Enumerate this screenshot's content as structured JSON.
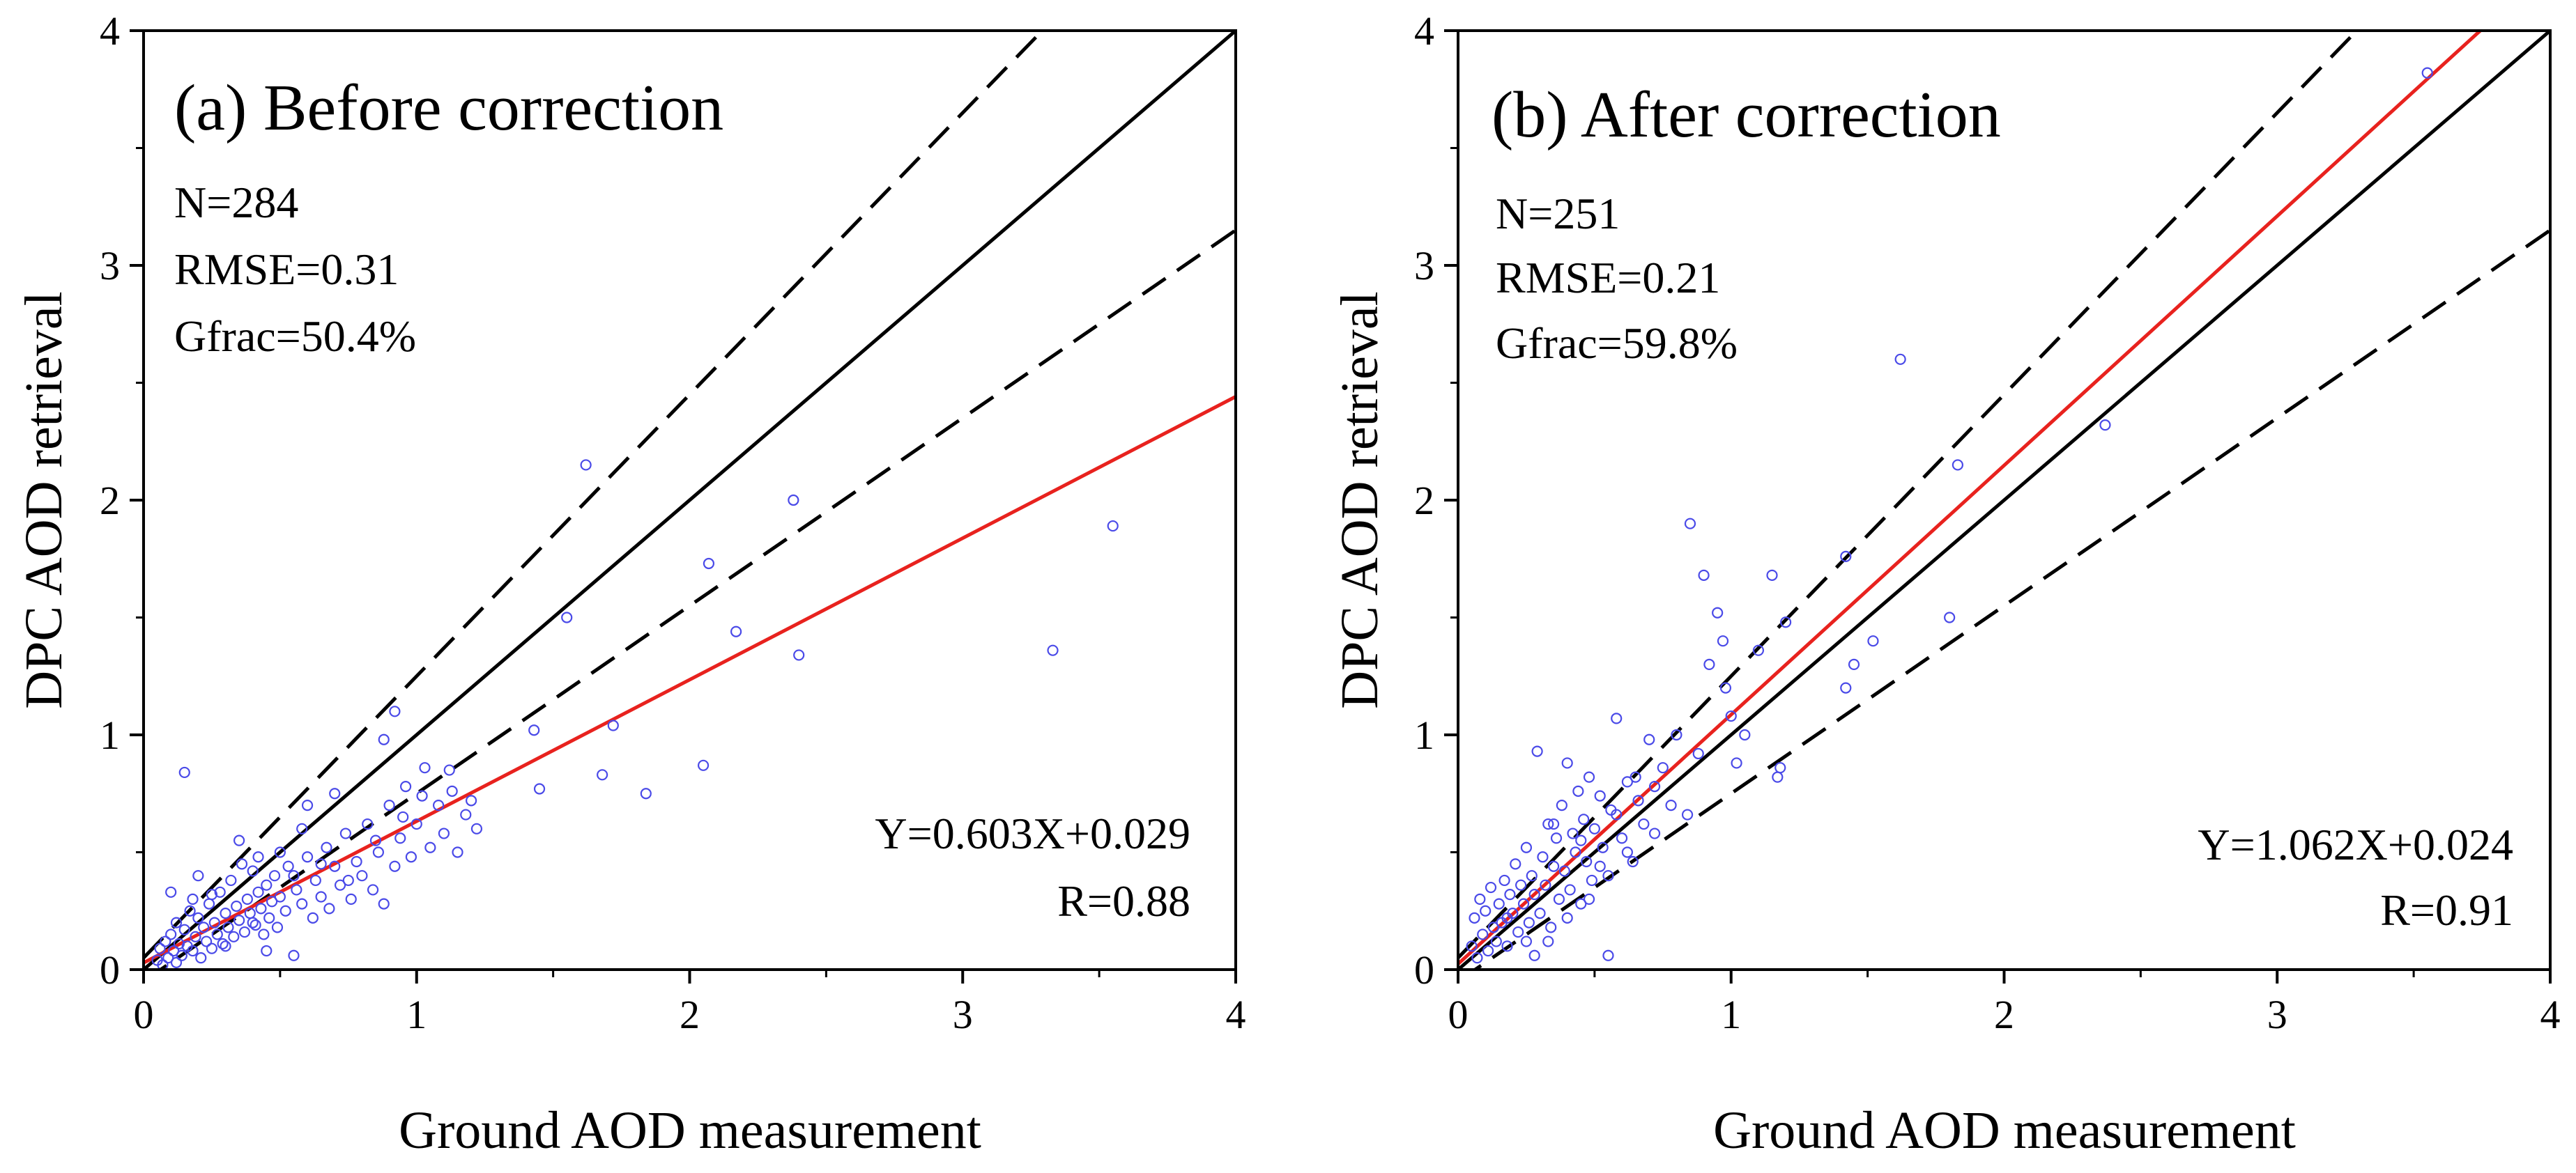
{
  "chart_data": [
    {
      "type": "scatter",
      "title": "(a) Before correction",
      "xlabel": "Ground AOD measurement",
      "ylabel": "DPC AOD retrieval",
      "xlim": [
        0,
        4
      ],
      "ylim": [
        0,
        4
      ],
      "xticks": [
        "0",
        "1",
        "2",
        "3",
        "4"
      ],
      "yticks": [
        "0",
        "1",
        "2",
        "3",
        "4"
      ],
      "stats": {
        "n": "N=284",
        "rmse": "RMSE=0.31",
        "gfrac": "Gfrac=50.4%"
      },
      "fit": {
        "equation": "Y=0.603X+0.029",
        "r": "R=0.88",
        "slope": 0.603,
        "intercept": 0.029
      },
      "reference_lines": {
        "one_to_one": true,
        "error_envelope": "dashed"
      },
      "colors": {
        "points": "#4a4ae8",
        "fit": "#e8221e",
        "one_to_one": "#000000"
      },
      "points": [
        [
          0.05,
          0.04
        ],
        [
          0.06,
          0.09
        ],
        [
          0.07,
          0.02
        ],
        [
          0.08,
          0.12
        ],
        [
          0.09,
          0.05
        ],
        [
          0.1,
          0.15
        ],
        [
          0.11,
          0.08
        ],
        [
          0.12,
          0.03
        ],
        [
          0.12,
          0.2
        ],
        [
          0.13,
          0.11
        ],
        [
          0.14,
          0.06
        ],
        [
          0.15,
          0.17
        ],
        [
          0.16,
          0.1
        ],
        [
          0.17,
          0.25
        ],
        [
          0.18,
          0.08
        ],
        [
          0.19,
          0.14
        ],
        [
          0.2,
          0.22
        ],
        [
          0.21,
          0.05
        ],
        [
          0.22,
          0.18
        ],
        [
          0.23,
          0.12
        ],
        [
          0.24,
          0.28
        ],
        [
          0.25,
          0.09
        ],
        [
          0.26,
          0.2
        ],
        [
          0.27,
          0.15
        ],
        [
          0.28,
          0.33
        ],
        [
          0.29,
          0.11
        ],
        [
          0.3,
          0.24
        ],
        [
          0.31,
          0.18
        ],
        [
          0.32,
          0.38
        ],
        [
          0.33,
          0.14
        ],
        [
          0.34,
          0.27
        ],
        [
          0.35,
          0.21
        ],
        [
          0.36,
          0.45
        ],
        [
          0.37,
          0.16
        ],
        [
          0.38,
          0.3
        ],
        [
          0.39,
          0.24
        ],
        [
          0.4,
          0.42
        ],
        [
          0.41,
          0.19
        ],
        [
          0.42,
          0.33
        ],
        [
          0.43,
          0.26
        ],
        [
          0.44,
          0.15
        ],
        [
          0.45,
          0.36
        ],
        [
          0.46,
          0.22
        ],
        [
          0.47,
          0.29
        ],
        [
          0.48,
          0.4
        ],
        [
          0.49,
          0.18
        ],
        [
          0.5,
          0.31
        ],
        [
          0.52,
          0.25
        ],
        [
          0.53,
          0.44
        ],
        [
          0.55,
          0.06
        ],
        [
          0.56,
          0.34
        ],
        [
          0.58,
          0.28
        ],
        [
          0.6,
          0.48
        ],
        [
          0.62,
          0.22
        ],
        [
          0.63,
          0.38
        ],
        [
          0.65,
          0.31
        ],
        [
          0.67,
          0.52
        ],
        [
          0.68,
          0.26
        ],
        [
          0.7,
          0.44
        ],
        [
          0.72,
          0.36
        ],
        [
          0.74,
          0.58
        ],
        [
          0.76,
          0.3
        ],
        [
          0.78,
          0.46
        ],
        [
          0.8,
          0.4
        ],
        [
          0.82,
          0.62
        ],
        [
          0.84,
          0.34
        ],
        [
          0.86,
          0.5
        ],
        [
          0.88,
          0.28
        ],
        [
          0.9,
          0.7
        ],
        [
          0.92,
          0.44
        ],
        [
          0.94,
          0.56
        ],
        [
          0.96,
          0.78
        ],
        [
          0.98,
          0.48
        ],
        [
          1.0,
          0.62
        ],
        [
          1.03,
          0.86
        ],
        [
          1.05,
          0.52
        ],
        [
          1.08,
          0.7
        ],
        [
          1.1,
          0.58
        ],
        [
          1.13,
          0.76
        ],
        [
          1.15,
          0.5
        ],
        [
          1.18,
          0.66
        ],
        [
          1.2,
          0.72
        ],
        [
          1.22,
          0.6
        ],
        [
          0.15,
          0.84
        ],
        [
          0.92,
          1.1
        ],
        [
          0.88,
          0.98
        ],
        [
          0.7,
          0.75
        ],
        [
          0.6,
          0.7
        ],
        [
          0.35,
          0.55
        ],
        [
          0.2,
          0.4
        ],
        [
          0.1,
          0.33
        ],
        [
          0.18,
          0.3
        ],
        [
          1.43,
          1.02
        ],
        [
          1.45,
          0.77
        ],
        [
          1.55,
          1.5
        ],
        [
          1.62,
          2.15
        ],
        [
          1.68,
          0.83
        ],
        [
          1.72,
          1.04
        ],
        [
          1.84,
          0.75
        ],
        [
          2.05,
          0.87
        ],
        [
          2.07,
          1.73
        ],
        [
          2.17,
          1.44
        ],
        [
          2.38,
          2.0
        ],
        [
          2.4,
          1.34
        ],
        [
          3.33,
          1.36
        ],
        [
          3.55,
          1.89
        ],
        [
          0.3,
          0.1
        ],
        [
          0.4,
          0.2
        ],
        [
          0.25,
          0.32
        ],
        [
          0.55,
          0.4
        ],
        [
          0.45,
          0.08
        ],
        [
          0.65,
          0.45
        ],
        [
          0.75,
          0.38
        ],
        [
          0.85,
          0.55
        ],
        [
          0.95,
          0.65
        ],
        [
          1.02,
          0.74
        ],
        [
          1.12,
          0.85
        ],
        [
          0.58,
          0.6
        ],
        [
          0.5,
          0.5
        ],
        [
          0.42,
          0.48
        ]
      ]
    },
    {
      "type": "scatter",
      "title": "(b) After correction",
      "xlabel": "Ground AOD measurement",
      "ylabel": "DPC AOD retrieval",
      "xlim": [
        0,
        4
      ],
      "ylim": [
        0,
        4
      ],
      "xticks": [
        "0",
        "1",
        "2",
        "3",
        "4"
      ],
      "yticks": [
        "0",
        "1",
        "2",
        "3",
        "4"
      ],
      "stats": {
        "n": "N=251",
        "rmse": "RMSE=0.21",
        "gfrac": "Gfrac=59.8%"
      },
      "fit": {
        "equation": "Y=1.062X+0.024",
        "r": "R=0.91",
        "slope": 1.062,
        "intercept": 0.024
      },
      "reference_lines": {
        "one_to_one": true,
        "error_envelope": "dashed"
      },
      "colors": {
        "points": "#4a4ae8",
        "fit": "#e8221e",
        "one_to_one": "#000000"
      },
      "points": [
        [
          0.05,
          0.1
        ],
        [
          0.06,
          0.22
        ],
        [
          0.07,
          0.05
        ],
        [
          0.08,
          0.3
        ],
        [
          0.09,
          0.15
        ],
        [
          0.1,
          0.25
        ],
        [
          0.11,
          0.08
        ],
        [
          0.12,
          0.35
        ],
        [
          0.13,
          0.18
        ],
        [
          0.14,
          0.12
        ],
        [
          0.15,
          0.28
        ],
        [
          0.16,
          0.2
        ],
        [
          0.17,
          0.38
        ],
        [
          0.18,
          0.1
        ],
        [
          0.19,
          0.32
        ],
        [
          0.2,
          0.24
        ],
        [
          0.21,
          0.45
        ],
        [
          0.22,
          0.16
        ],
        [
          0.23,
          0.36
        ],
        [
          0.24,
          0.28
        ],
        [
          0.25,
          0.52
        ],
        [
          0.26,
          0.2
        ],
        [
          0.27,
          0.4
        ],
        [
          0.28,
          0.32
        ],
        [
          0.29,
          0.93
        ],
        [
          0.3,
          0.24
        ],
        [
          0.31,
          0.48
        ],
        [
          0.32,
          0.36
        ],
        [
          0.33,
          0.62
        ],
        [
          0.34,
          0.18
        ],
        [
          0.35,
          0.44
        ],
        [
          0.36,
          0.56
        ],
        [
          0.37,
          0.3
        ],
        [
          0.38,
          0.7
        ],
        [
          0.39,
          0.42
        ],
        [
          0.4,
          0.88
        ],
        [
          0.41,
          0.34
        ],
        [
          0.42,
          0.58
        ],
        [
          0.43,
          0.5
        ],
        [
          0.44,
          0.76
        ],
        [
          0.45,
          0.28
        ],
        [
          0.46,
          0.64
        ],
        [
          0.47,
          0.46
        ],
        [
          0.48,
          0.82
        ],
        [
          0.49,
          0.38
        ],
        [
          0.5,
          0.6
        ],
        [
          0.52,
          0.74
        ],
        [
          0.53,
          0.52
        ],
        [
          0.55,
          0.06
        ],
        [
          0.56,
          0.68
        ],
        [
          0.58,
          1.07
        ],
        [
          0.6,
          0.56
        ],
        [
          0.62,
          0.8
        ],
        [
          0.64,
          0.46
        ],
        [
          0.66,
          0.72
        ],
        [
          0.68,
          0.62
        ],
        [
          0.7,
          0.98
        ],
        [
          0.72,
          0.58
        ],
        [
          0.75,
          0.86
        ],
        [
          0.78,
          0.7
        ],
        [
          0.8,
          1.0
        ],
        [
          0.84,
          0.66
        ],
        [
          0.85,
          1.9
        ],
        [
          0.88,
          0.92
        ],
        [
          0.9,
          1.68
        ],
        [
          0.92,
          1.3
        ],
        [
          0.95,
          1.52
        ],
        [
          0.97,
          1.4
        ],
        [
          0.98,
          1.2
        ],
        [
          1.0,
          1.08
        ],
        [
          1.02,
          0.88
        ],
        [
          1.05,
          1.0
        ],
        [
          1.1,
          1.36
        ],
        [
          1.15,
          1.68
        ],
        [
          1.17,
          0.82
        ],
        [
          1.18,
          0.86
        ],
        [
          1.2,
          1.48
        ],
        [
          1.42,
          1.76
        ],
        [
          1.42,
          1.2
        ],
        [
          1.45,
          1.3
        ],
        [
          1.52,
          1.4
        ],
        [
          1.62,
          2.6
        ],
        [
          1.8,
          1.5
        ],
        [
          1.83,
          2.15
        ],
        [
          2.37,
          2.32
        ],
        [
          3.55,
          3.82
        ],
        [
          0.28,
          0.06
        ],
        [
          0.33,
          0.12
        ],
        [
          0.4,
          0.22
        ],
        [
          0.48,
          0.3
        ],
        [
          0.55,
          0.4
        ],
        [
          0.62,
          0.5
        ],
        [
          0.25,
          0.12
        ],
        [
          0.18,
          0.22
        ],
        [
          0.35,
          0.62
        ],
        [
          0.45,
          0.55
        ],
        [
          0.52,
          0.44
        ],
        [
          0.58,
          0.66
        ],
        [
          0.65,
          0.82
        ],
        [
          0.72,
          0.78
        ]
      ]
    }
  ]
}
